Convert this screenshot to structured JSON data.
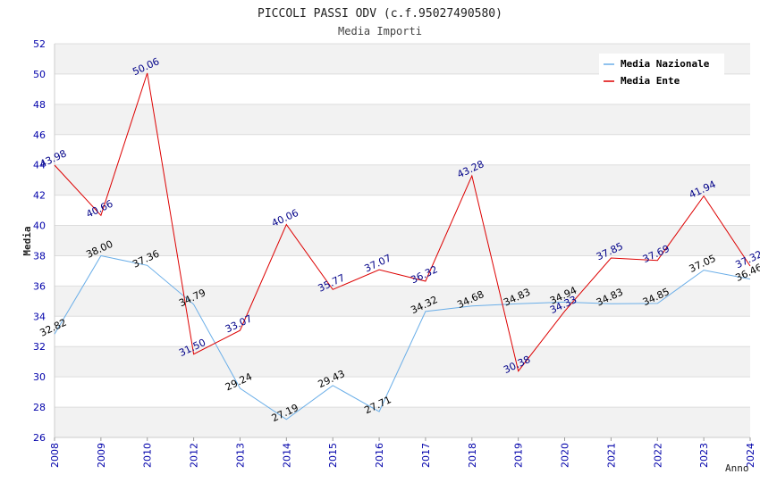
{
  "chart_data": {
    "type": "line",
    "title": "PICCOLI PASSI ODV (c.f.95027490580)",
    "subtitle": "Media Importi",
    "xlabel": "Anno",
    "ylabel": "Media",
    "ylim": [
      26,
      52
    ],
    "ytick_step": 2,
    "grid": true,
    "legend_position": "top-right",
    "categories": [
      "2008",
      "2009",
      "2010",
      "2012",
      "2013",
      "2014",
      "2015",
      "2016",
      "2017",
      "2018",
      "2019",
      "2020",
      "2021",
      "2022",
      "2023",
      "2024"
    ],
    "series": [
      {
        "name": "Media Nazionale",
        "color": "#6aaee8",
        "label_color": "#000000",
        "values": [
          32.82,
          38.0,
          37.36,
          34.79,
          29.24,
          27.19,
          29.43,
          27.71,
          34.32,
          34.68,
          34.83,
          34.94,
          34.83,
          34.85,
          37.05,
          36.46
        ]
      },
      {
        "name": "Media Ente",
        "color": "#dd0000",
        "label_color": "#000088",
        "values": [
          43.98,
          40.66,
          50.06,
          31.5,
          33.07,
          40.06,
          35.77,
          37.07,
          36.32,
          43.28,
          30.38,
          34.33,
          37.85,
          37.69,
          41.94,
          37.32
        ]
      }
    ]
  }
}
